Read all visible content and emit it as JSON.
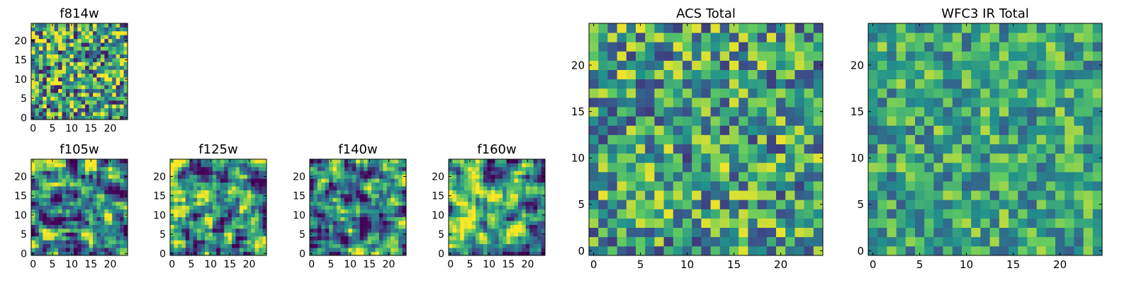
{
  "figure": {
    "colormap": [
      "#440154",
      "#3b528b",
      "#21918c",
      "#5ec962",
      "#fde725"
    ]
  },
  "chart_data": [
    {
      "type": "heatmap",
      "id": "f814w",
      "title": "f814w",
      "grid_size": 25,
      "xlim": [
        -0.5,
        24.5
      ],
      "ylim": [
        -0.5,
        24.5
      ],
      "xticks": [
        0,
        5,
        10,
        15,
        20
      ],
      "yticks": [
        0,
        5,
        10,
        15,
        20
      ],
      "seed": 11,
      "blur": 0,
      "contrast": 1.0
    },
    {
      "type": "heatmap",
      "id": "f105w",
      "title": "f105w",
      "grid_size": 25,
      "xlim": [
        -0.5,
        24.5
      ],
      "ylim": [
        -0.5,
        24.5
      ],
      "xticks": [
        0,
        5,
        10,
        15,
        20
      ],
      "yticks": [
        0,
        5,
        10,
        15,
        20
      ],
      "seed": 23,
      "blur": 1,
      "contrast": 1.6
    },
    {
      "type": "heatmap",
      "id": "f125w",
      "title": "f125w",
      "grid_size": 25,
      "xlim": [
        -0.5,
        24.5
      ],
      "ylim": [
        -0.5,
        24.5
      ],
      "xticks": [
        0,
        5,
        10,
        15,
        20
      ],
      "yticks": [
        0,
        5,
        10,
        15,
        20
      ],
      "seed": 37,
      "blur": 1,
      "contrast": 1.6
    },
    {
      "type": "heatmap",
      "id": "f140w",
      "title": "f140w",
      "grid_size": 25,
      "xlim": [
        -0.5,
        24.5
      ],
      "ylim": [
        -0.5,
        24.5
      ],
      "xticks": [
        0,
        5,
        10,
        15,
        20
      ],
      "yticks": [
        0,
        5,
        10,
        15,
        20
      ],
      "seed": 41,
      "blur": 1,
      "contrast": 1.6
    },
    {
      "type": "heatmap",
      "id": "f160w",
      "title": "f160w",
      "grid_size": 25,
      "xlim": [
        -0.5,
        24.5
      ],
      "ylim": [
        -0.5,
        24.5
      ],
      "xticks": [
        0,
        5,
        10,
        15,
        20
      ],
      "yticks": [
        0,
        5,
        10,
        15,
        20
      ],
      "seed": 53,
      "blur": 1,
      "contrast": 1.6
    },
    {
      "type": "heatmap",
      "id": "acs-total",
      "title": "ACS Total",
      "grid_size": 25,
      "xlim": [
        -0.5,
        24.5
      ],
      "ylim": [
        -0.5,
        24.5
      ],
      "xticks": [
        0,
        5,
        10,
        15,
        20
      ],
      "yticks": [
        0,
        5,
        10,
        15,
        20
      ],
      "seed": 67,
      "blur": 0,
      "contrast": 0.8
    },
    {
      "type": "heatmap",
      "id": "wfc3-ir-total",
      "title": "WFC3 IR Total",
      "grid_size": 25,
      "xlim": [
        -0.5,
        24.5
      ],
      "ylim": [
        -0.5,
        24.5
      ],
      "xticks": [
        0,
        5,
        10,
        15,
        20
      ],
      "yticks": [
        0,
        5,
        10,
        15,
        20
      ],
      "seed": 79,
      "blur": 0,
      "contrast": 0.6
    }
  ]
}
